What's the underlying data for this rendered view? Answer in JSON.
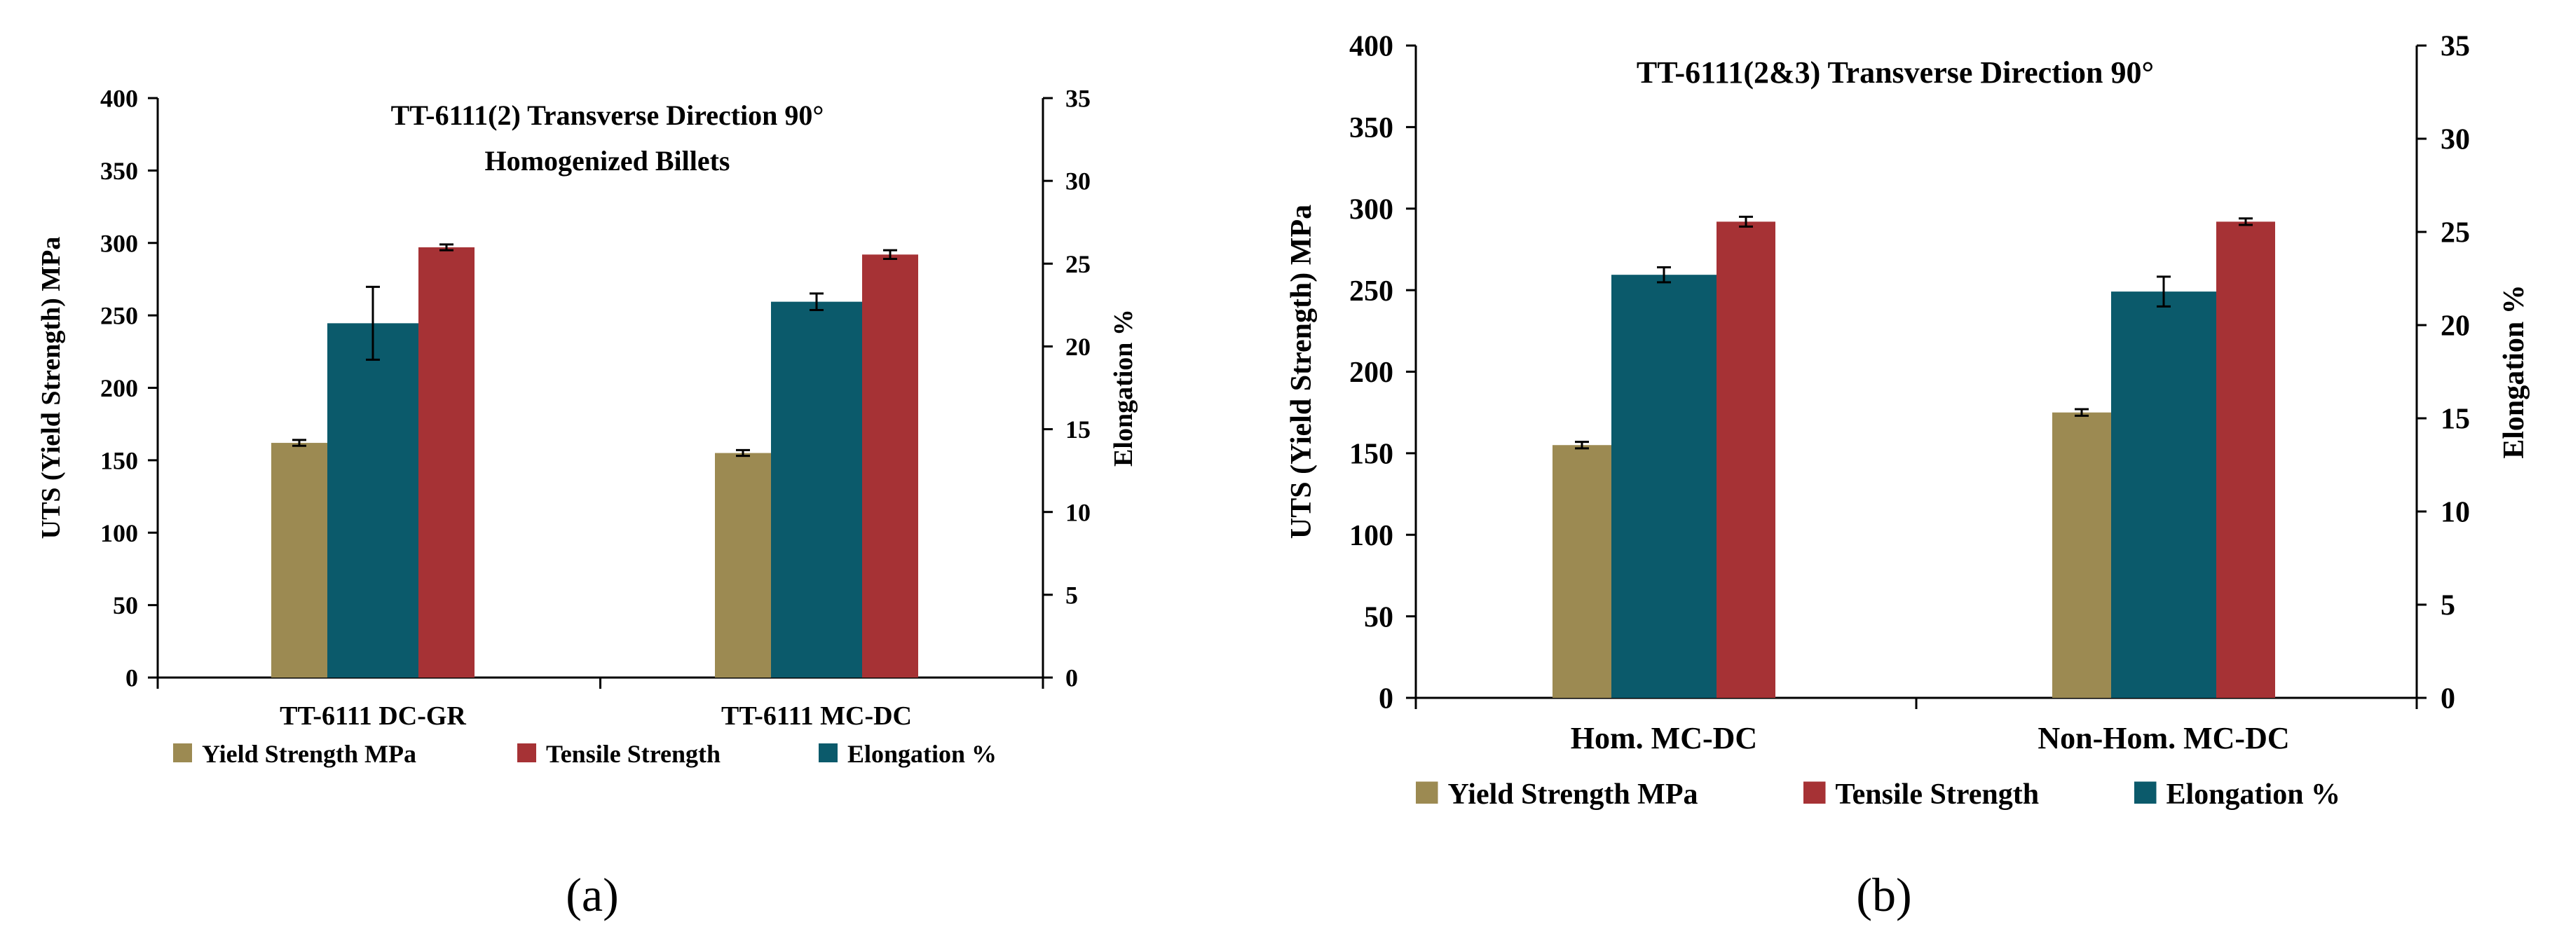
{
  "chart_data": [
    {
      "type": "bar",
      "panel_label": "(a)",
      "title": "TT-6111(2) Transverse Direction 90°",
      "subtitle": "Homogenized Billets",
      "categories": [
        "TT-6111 DC-GR",
        "TT-6111 MC-DC"
      ],
      "ylabel": "UTS (Yield Strength) MPa",
      "y2label": "Elongation %",
      "ylim": [
        0,
        400
      ],
      "y2lim": [
        0,
        35
      ],
      "yticks": [
        "0",
        "50",
        "100",
        "150",
        "200",
        "250",
        "300",
        "350",
        "400"
      ],
      "y2ticks": [
        "0",
        "5",
        "10",
        "15",
        "20",
        "25",
        "30",
        "35"
      ],
      "series": [
        {
          "name": "Yield Strength MPa",
          "axis": "left",
          "color": "#9C8A52",
          "values": [
            162,
            155
          ],
          "errors": [
            2,
            2
          ]
        },
        {
          "name": "Elongation %",
          "axis": "right",
          "color": "#0B5A6B",
          "values": [
            21.4,
            22.7
          ],
          "errors": [
            2.2,
            0.5
          ]
        },
        {
          "name": "Tensile Strength",
          "axis": "left",
          "color": "#A63235",
          "values": [
            297,
            292
          ],
          "errors": [
            2,
            3
          ]
        }
      ],
      "legend": [
        "Yield Strength MPa",
        "Tensile Strength",
        "Elongation %"
      ],
      "legend_position": "bottom"
    },
    {
      "type": "bar",
      "panel_label": "(b)",
      "title": "TT-6111(2&3) Transverse Direction 90°",
      "subtitle": "",
      "categories": [
        "Hom. MC-DC",
        "Non-Hom. MC-DC"
      ],
      "ylabel": "UTS (Yield Strength) MPa",
      "y2label": "Elongation %",
      "ylim": [
        0,
        400
      ],
      "y2lim": [
        0,
        35
      ],
      "yticks": [
        "0",
        "50",
        "100",
        "150",
        "200",
        "250",
        "300",
        "350",
        "400"
      ],
      "y2ticks": [
        "0",
        "5",
        "10",
        "15",
        "20",
        "25",
        "30",
        "35"
      ],
      "series": [
        {
          "name": "Yield Strength MPa",
          "axis": "left",
          "color": "#9C8A52",
          "values": [
            155,
            175
          ],
          "errors": [
            2,
            2
          ]
        },
        {
          "name": "Elongation %",
          "axis": "right",
          "color": "#0B5A6B",
          "values": [
            22.7,
            21.8
          ],
          "errors": [
            0.4,
            0.8
          ]
        },
        {
          "name": "Tensile Strength",
          "axis": "left",
          "color": "#A63235",
          "values": [
            292,
            292
          ],
          "errors": [
            3,
            2
          ]
        }
      ],
      "legend": [
        "Yield Strength MPa",
        "Tensile Strength",
        "Elongation %"
      ],
      "legend_position": "bottom"
    }
  ]
}
